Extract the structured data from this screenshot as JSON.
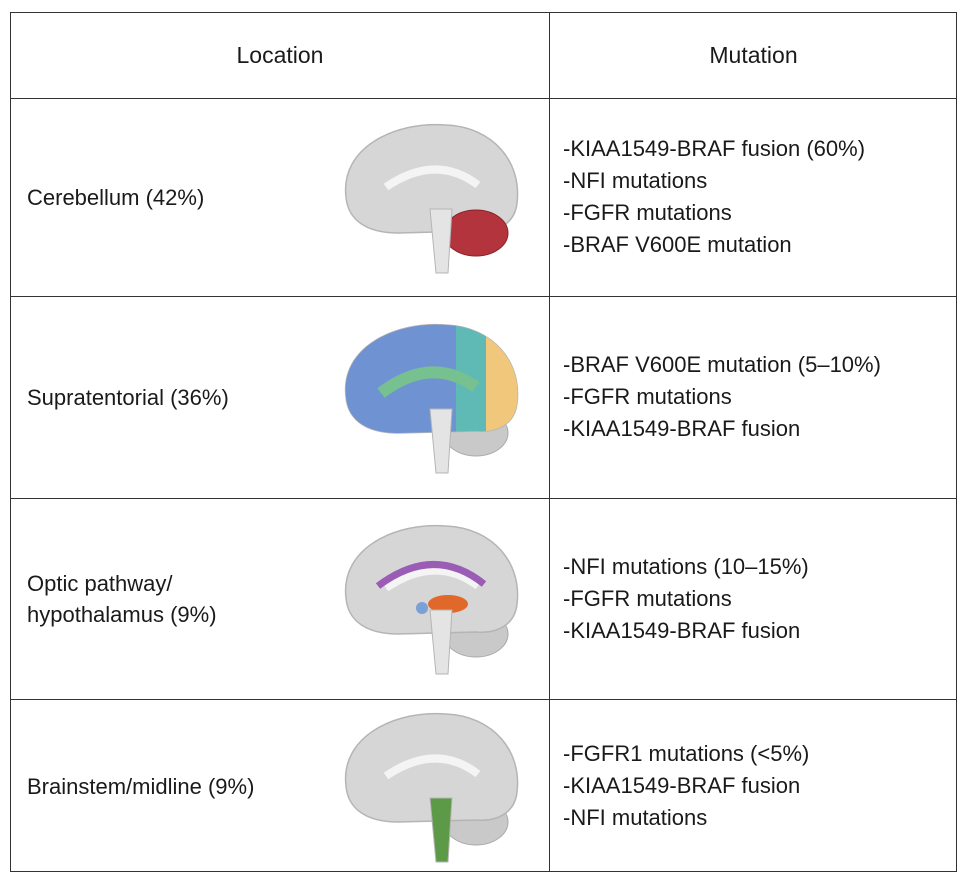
{
  "table": {
    "header": [
      "Location",
      "Mutation"
    ],
    "rows": [
      {
        "location": [
          "Cerebellum (42%)"
        ],
        "mutations": [
          "-KIAA1549-BRAF fusion (60%)",
          "-NFI mutations",
          "-FGFR mutations",
          "-BRAF V600E mutation"
        ]
      },
      {
        "location": [
          "Supratentorial (36%)"
        ],
        "mutations": [
          "-BRAF V600E mutation (5–10%)",
          "-FGFR mutations",
          "-KIAA1549-BRAF fusion"
        ]
      },
      {
        "location": [
          "Optic pathway/",
          "hypothalamus (9%)"
        ],
        "mutations": [
          "-NFI mutations (10–15%)",
          "-FGFR mutations",
          "-KIAA1549-BRAF fusion"
        ]
      },
      {
        "location": [
          "Brainstem/midline (9%)"
        ],
        "mutations": [
          "-FGFR1 mutations (<5%)",
          "-KIAA1549-BRAF fusion",
          "-NFI mutations"
        ]
      }
    ]
  }
}
